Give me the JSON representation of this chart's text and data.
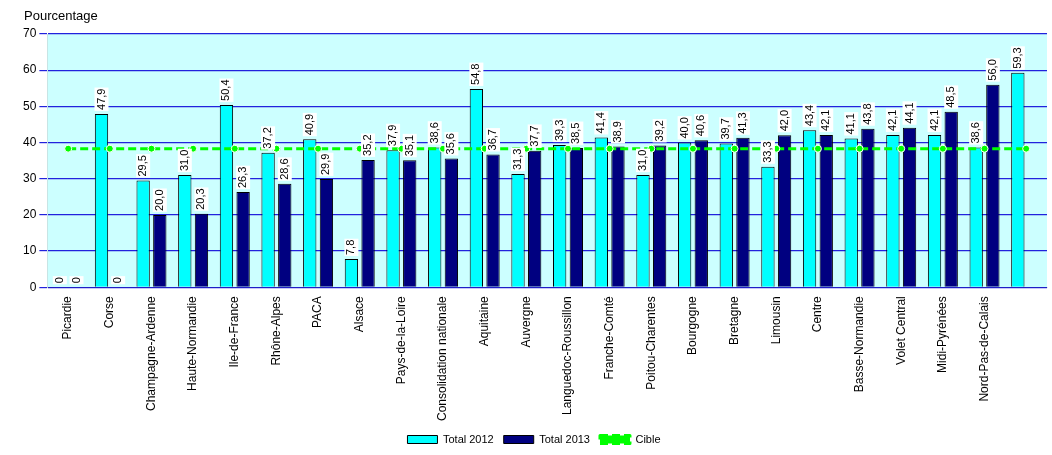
{
  "chart_data": {
    "type": "bar",
    "ylabel": "Pourcentage",
    "categories": [
      "Picardie",
      "Corse",
      "Champagne-Ardenne",
      "Haute-Normandie",
      "Ile-de-France",
      "Rhône-Alpes",
      "PACA",
      "Alsace",
      "Pays-de-la-Loire",
      "Consolidation nationale",
      "Aquitaine",
      "Auvergne",
      "Languedoc-Roussillon",
      "Franche-Comté",
      "Poitou-Charentes",
      "Bourgogne",
      "Bretagne",
      "Limousin",
      "Centre",
      "Basse-Normandie",
      "Volet Central",
      "Midi-Pyrénées",
      "Nord-Pas-de-Calais",
      null
    ],
    "series": [
      {
        "name": "Total 2012",
        "color": "#00ffff",
        "values": [
          0,
          47.9,
          29.5,
          31.0,
          50.4,
          37.2,
          40.9,
          7.8,
          37.9,
          38.6,
          54.8,
          31.3,
          39.3,
          41.4,
          31.0,
          40.0,
          39.7,
          33.3,
          43.4,
          41.1,
          42.1,
          42.1,
          38.6,
          59.3
        ],
        "value_labels": [
          "0",
          "47,9",
          "29,5",
          "31,0",
          "50,4",
          "37,2",
          "40,9",
          "7,8",
          "37,9",
          "38,6",
          "54,8",
          "31,3",
          "39,3",
          "41,4",
          "31,0",
          "40,0",
          "39,7",
          "33,3",
          "43,4",
          "41,1",
          "42,1",
          "42,1",
          "38,6",
          "59,3"
        ]
      },
      {
        "name": "Total 2013",
        "color": "#000080",
        "values": [
          0,
          0,
          20.0,
          20.3,
          26.3,
          28.6,
          29.9,
          35.2,
          35.1,
          35.6,
          36.7,
          37.7,
          38.5,
          38.9,
          39.2,
          40.6,
          41.3,
          42.0,
          42.1,
          43.8,
          44.1,
          48.5,
          56.0,
          null
        ],
        "value_labels": [
          "0",
          "0",
          "20,0",
          "20,3",
          "26,3",
          "28,6",
          "29,9",
          "35,2",
          "35,1",
          "35,6",
          "36,7",
          "37,7",
          "38,5",
          "38,9",
          "39,2",
          "40,6",
          "41,3",
          "42,0",
          "42,1",
          "43,8",
          "44,1",
          "48,5",
          "56,0",
          null
        ]
      },
      {
        "name": "Cible",
        "type": "line",
        "color": "#00ff00",
        "marker": "circle",
        "line_style": "dashed",
        "values": [
          38.3,
          38.3,
          38.3,
          38.3,
          38.3,
          38.3,
          38.3,
          38.3,
          38.3,
          38.3,
          38.3,
          38.3,
          38.3,
          38.3,
          38.3,
          38.3,
          38.3,
          38.3,
          38.3,
          38.3,
          38.3,
          38.3,
          38.3,
          38.3
        ]
      }
    ],
    "ylim": [
      0,
      70
    ],
    "yticks": [
      0,
      10,
      20,
      30,
      40,
      50,
      60,
      70
    ],
    "grid": "y",
    "legend": "bottom"
  }
}
